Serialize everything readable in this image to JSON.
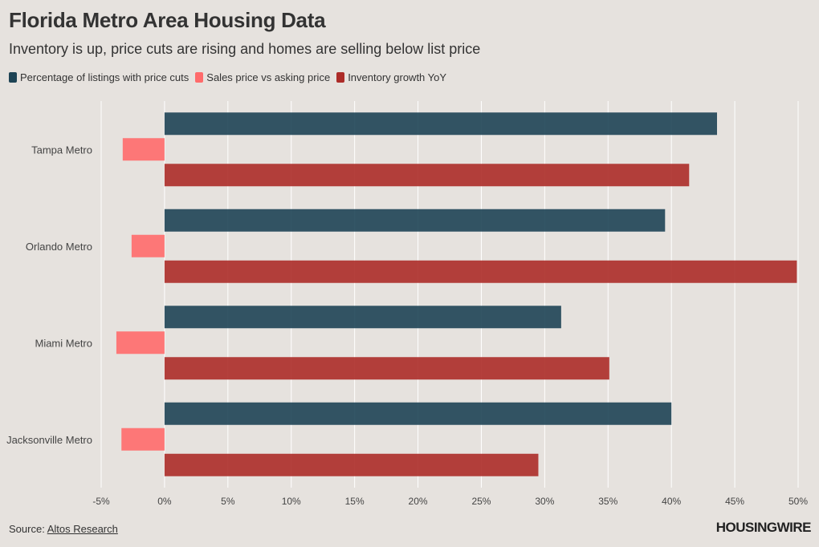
{
  "header": {
    "title": "Florida Metro Area Housing Data",
    "subtitle": "Inventory is up, price cuts are rising and homes are selling below list price"
  },
  "footer": {
    "source_label": "Source: ",
    "source_link": "Altos Research",
    "logo": "HOUSINGWIRE"
  },
  "chart_data": {
    "type": "bar",
    "orientation": "horizontal",
    "title": "Florida Metro Area Housing Data",
    "subtitle": "Inventory is up, price cuts are rising and homes are selling below list price",
    "categories": [
      "Tampa Metro",
      "Orlando Metro",
      "Miami Metro",
      "Jacksonville Metro"
    ],
    "series": [
      {
        "name": "Percentage of listings with price cuts",
        "color": "#1e4455",
        "values": [
          43.6,
          39.5,
          31.3,
          40.0
        ]
      },
      {
        "name": "Sales price vs asking price",
        "color": "#ff6b6b",
        "values": [
          -3.3,
          -2.6,
          -3.8,
          -3.4
        ]
      },
      {
        "name": "Inventory growth YoY",
        "color": "#ac2c28",
        "values": [
          41.4,
          49.9,
          35.1,
          29.5
        ]
      }
    ],
    "xlim": [
      -5,
      50
    ],
    "xticks": [
      -5,
      0,
      5,
      10,
      15,
      20,
      25,
      30,
      35,
      40,
      45,
      50
    ],
    "tick_labels": [
      "-5%",
      "0%",
      "5%",
      "10%",
      "15%",
      "20%",
      "25%",
      "30%",
      "35%",
      "40%",
      "45%",
      "50%"
    ],
    "xlabel": "",
    "ylabel": "",
    "grid": true,
    "legend": "top-left"
  }
}
